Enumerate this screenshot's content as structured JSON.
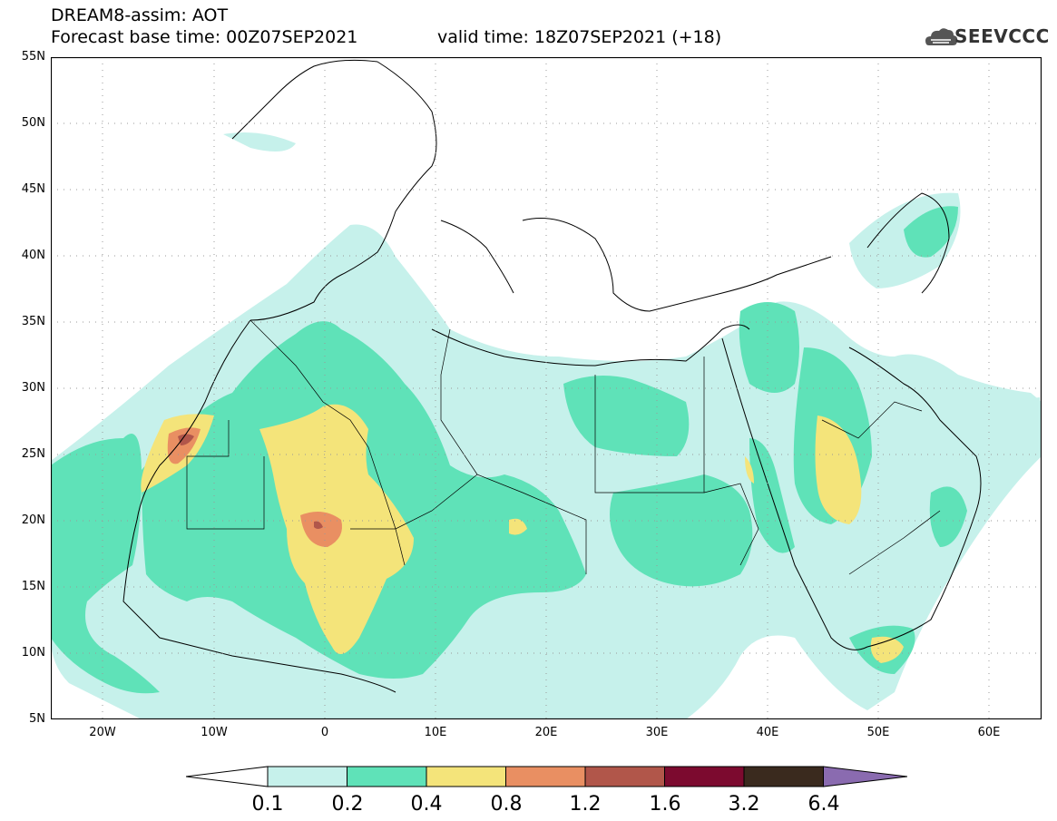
{
  "header": {
    "line1": "DREAM8-assim: AOT",
    "line2": "Forecast base time: 00Z07SEP2021",
    "line3": "valid time: 18Z07SEP2021 (+18)"
  },
  "logo": {
    "name": "cloud-logo-icon",
    "text": "SEEVCCC"
  },
  "map": {
    "lat_labels": [
      "55N",
      "50N",
      "45N",
      "40N",
      "35N",
      "30N",
      "25N",
      "20N",
      "15N",
      "10N",
      "5N"
    ],
    "lon_labels": [
      "20W",
      "10W",
      "0",
      "10E",
      "20E",
      "30E",
      "40E",
      "50E",
      "60E"
    ]
  },
  "colorbar": {
    "labels": [
      "0.1",
      "0.2",
      "0.4",
      "0.8",
      "1.2",
      "1.6",
      "3.2",
      "6.4"
    ],
    "colors": [
      "#ffffff",
      "#c6f1eb",
      "#5fe2b8",
      "#f4e47a",
      "#e98f62",
      "#b1564a",
      "#7c0a2f",
      "#3a2a1e",
      "#8a6bb0"
    ]
  }
}
